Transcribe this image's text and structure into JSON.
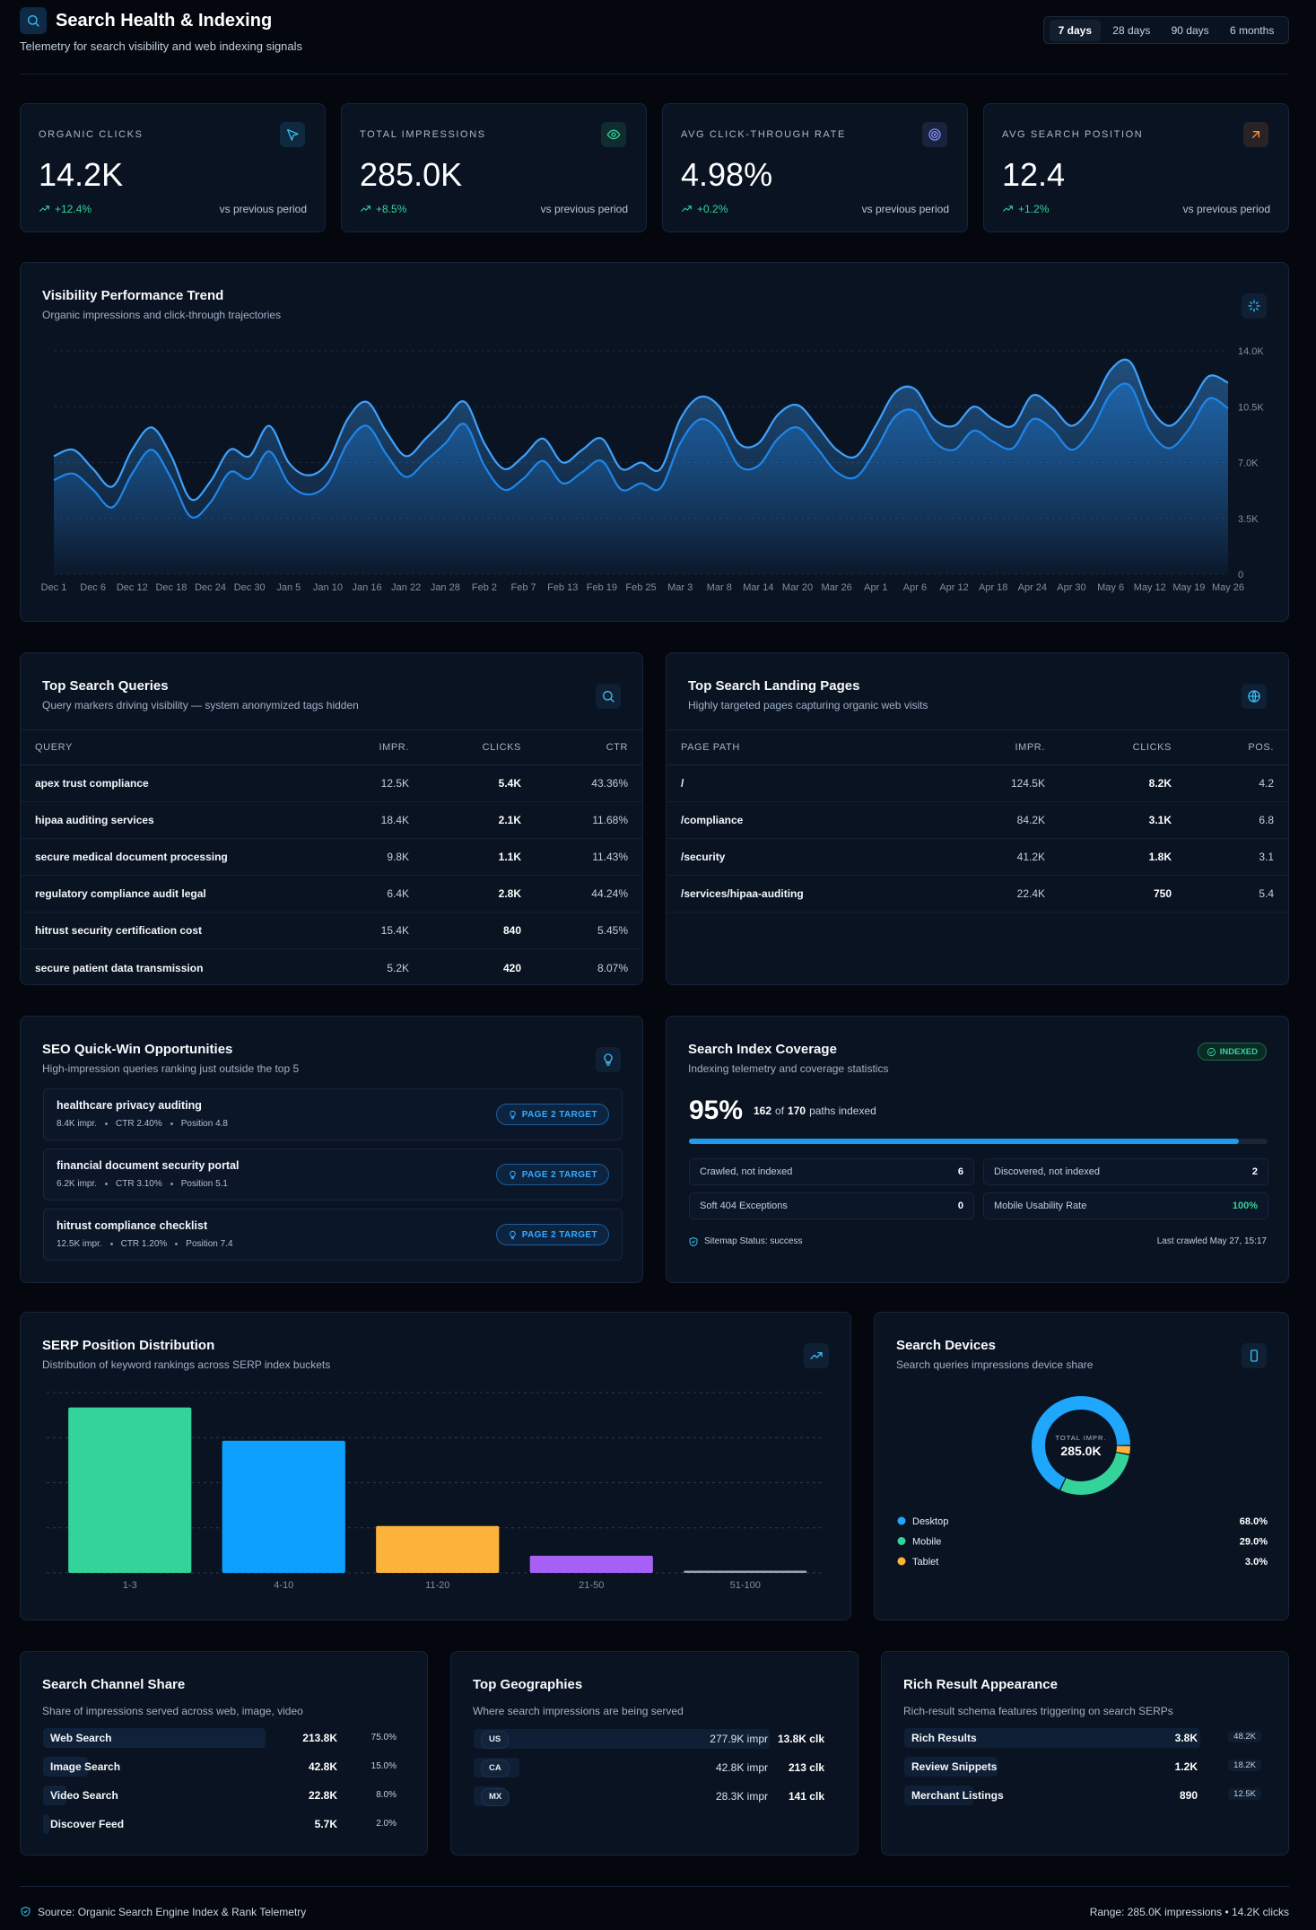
{
  "header": {
    "title": "Search Health & Indexing",
    "subtitle": "Telemetry for search visibility and web indexing signals",
    "ranges": [
      {
        "label": "7 days",
        "active": true
      },
      {
        "label": "28 days",
        "active": false
      },
      {
        "label": "90 days",
        "active": false
      },
      {
        "label": "6 months",
        "active": false
      }
    ]
  },
  "kpis": [
    {
      "label": "ORGANIC CLICKS",
      "value": "14.2K",
      "change": "+12.4%",
      "comparison": "vs previous period",
      "color": "#38bdf8"
    },
    {
      "label": "TOTAL IMPRESSIONS",
      "value": "285.0K",
      "change": "+8.5%",
      "comparison": "vs previous period",
      "color": "#34d399"
    },
    {
      "label": "AVG CLICK-THROUGH RATE",
      "value": "4.98%",
      "change": "+0.2%",
      "comparison": "vs previous period",
      "color": "#818cf8"
    },
    {
      "label": "AVG SEARCH POSITION",
      "value": "12.4",
      "change": "+1.2%",
      "comparison": "vs previous period",
      "color": "#fb923c"
    }
  ],
  "chart_data": [
    {
      "type": "area",
      "title": "Visibility Performance Trend",
      "subtitle": "Organic impressions and click-through trajectories",
      "categories": [
        "Dec 1",
        null,
        "Dec 6",
        null,
        "Dec 12",
        null,
        "Dec 18",
        null,
        "Dec 24",
        null,
        "Dec 30",
        null,
        "Jan 5",
        null,
        "Jan 10",
        null,
        "Jan 16",
        null,
        "Jan 22",
        null,
        "Jan 28",
        null,
        "Feb 2",
        null,
        "Feb 7",
        null,
        "Feb 13",
        null,
        "Feb 19",
        null,
        "Feb 25",
        null,
        "Mar 3",
        null,
        "Mar 8",
        null,
        "Mar 14",
        null,
        "Mar 20",
        null,
        "Mar 26",
        null,
        "Apr 1",
        null,
        "Apr 6",
        null,
        "Apr 12",
        null,
        "Apr 18",
        null,
        "Apr 24",
        null,
        "Apr 30",
        null,
        "May 6",
        null,
        "May 12",
        null,
        "May 19",
        null,
        "May 26"
      ],
      "series": [
        {
          "color": "#3da2ff",
          "values": [
            7400,
            7800,
            6600,
            5500,
            7800,
            9200,
            7400,
            4700,
            5800,
            7800,
            7400,
            9300,
            7000,
            6200,
            7000,
            9700,
            10800,
            8900,
            7400,
            8500,
            9700,
            10800,
            8200,
            6600,
            7400,
            8500,
            7000,
            7800,
            8500,
            6600,
            7000,
            6600,
            9700,
            11100,
            10500,
            8200,
            8200,
            10000,
            10600,
            9300,
            7800,
            7400,
            9300,
            11400,
            11600,
            9700,
            9300,
            10500,
            9700,
            9300,
            11200,
            10500,
            9300,
            10500,
            12800,
            13300,
            10500,
            9300,
            10500,
            12400,
            12000
          ]
        },
        {
          "color": "#1f86ea",
          "values": [
            5900,
            6300,
            5300,
            4200,
            6300,
            7800,
            6000,
            3600,
            4500,
            6400,
            6000,
            7700,
            5700,
            5000,
            5700,
            8200,
            9300,
            7500,
            6100,
            7100,
            8200,
            9400,
            6800,
            5300,
            6000,
            7100,
            5700,
            6400,
            7100,
            5300,
            5700,
            5400,
            8200,
            9700,
            9000,
            6800,
            6800,
            8500,
            9200,
            7900,
            6400,
            6100,
            7800,
            9900,
            10200,
            8300,
            7800,
            9000,
            8300,
            7900,
            9700,
            9100,
            7800,
            9000,
            11300,
            11800,
            9000,
            7900,
            9100,
            11000,
            10400
          ]
        }
      ],
      "ylim": [
        0,
        14000
      ],
      "yticks": [
        0,
        {
          "value": 3500,
          "label": "3.5K"
        },
        {
          "value": 7000,
          "label": "7.0K"
        },
        {
          "value": 10500,
          "label": "10.5K"
        },
        {
          "value": 14000,
          "label": "14.0K"
        }
      ],
      "grid": true
    },
    {
      "type": "bar",
      "title": "SERP Position Distribution",
      "subtitle": "Distribution of keyword rankings across SERP index buckets",
      "categories": [
        "1-3",
        "4-10",
        "11-20",
        "21-50",
        "51-100"
      ],
      "values": [
        36.7,
        29.3,
        10.4,
        3.8,
        0.5
      ],
      "colors": [
        "#34d399",
        "#0ea0ff",
        "#fbb33b",
        "#a760f5",
        "#9ca3af"
      ],
      "ylim": [
        0,
        40
      ],
      "yticks": [
        0,
        10,
        20,
        30,
        40
      ],
      "grid": true
    },
    {
      "type": "pie",
      "title": "Search Devices",
      "subtitle": "Search queries impressions device share",
      "center_label": "TOTAL IMPR.",
      "center_value": "285.0K",
      "categories": [
        "Desktop",
        "Mobile",
        "Tablet"
      ],
      "values": [
        68,
        29,
        3
      ],
      "value_labels": [
        "68.0%",
        "29.0%",
        "3.0%"
      ],
      "colors": [
        "#1ea7fd",
        "#34d399",
        "#fbb33b"
      ]
    }
  ],
  "queries": {
    "title": "Top Search Queries",
    "subtitle": "Query markers driving visibility — system anonymized tags hidden",
    "columns": [
      "QUERY",
      "IMPR.",
      "CLICKS",
      "CTR"
    ],
    "rows": [
      [
        "apex trust compliance",
        "12.5K",
        "5.4K",
        "43.36%"
      ],
      [
        "hipaa auditing services",
        "18.4K",
        "2.1K",
        "11.68%"
      ],
      [
        "secure medical document processing",
        "9.8K",
        "1.1K",
        "11.43%"
      ],
      [
        "regulatory compliance audit legal",
        "6.4K",
        "2.8K",
        "44.24%"
      ],
      [
        "hitrust security certification cost",
        "15.4K",
        "840",
        "5.45%"
      ],
      [
        "secure patient data transmission",
        "5.2K",
        "420",
        "8.07%"
      ]
    ]
  },
  "landing_pages": {
    "title": "Top Search Landing Pages",
    "subtitle": "Highly targeted pages capturing organic web visits",
    "columns": [
      "PAGE PATH",
      "IMPR.",
      "CLICKS",
      "POS."
    ],
    "rows": [
      [
        "/",
        "124.5K",
        "8.2K",
        "4.2"
      ],
      [
        "/compliance",
        "84.2K",
        "3.1K",
        "6.8"
      ],
      [
        "/security",
        "41.2K",
        "1.8K",
        "3.1"
      ],
      [
        "/services/hipaa-auditing",
        "22.4K",
        "750",
        "5.4"
      ]
    ]
  },
  "quick_wins": {
    "title": "SEO Quick-Win Opportunities",
    "subtitle": "High-impression queries ranking just outside the top 5",
    "items": [
      {
        "query": "healthcare privacy auditing",
        "impressions": "8.4K impr.",
        "ctr": "CTR 2.40%",
        "position": "Position 4.8",
        "badge": "PAGE 2 TARGET"
      },
      {
        "query": "financial document security portal",
        "impressions": "6.2K impr.",
        "ctr": "CTR 3.10%",
        "position": "Position 5.1",
        "badge": "PAGE 2 TARGET"
      },
      {
        "query": "hitrust compliance checklist",
        "impressions": "12.5K impr.",
        "ctr": "CTR 1.20%",
        "position": "Position 7.4",
        "badge": "PAGE 2 TARGET"
      }
    ]
  },
  "index_coverage": {
    "title": "Search Index Coverage",
    "subtitle": "Indexing telemetry and coverage statistics",
    "status": "INDEXED",
    "coverage": 95,
    "coverage_label": "95%",
    "indexed": "162",
    "of": "of",
    "total": "170",
    "indexed_suffix": "paths indexed",
    "stats": [
      {
        "label": "Crawled, not indexed",
        "value": "6"
      },
      {
        "label": "Discovered, not indexed",
        "value": "2"
      },
      {
        "label": "Soft 404 Exceptions",
        "value": "0"
      },
      {
        "label": "Mobile Usability Rate",
        "value": "100%",
        "highlight": true
      }
    ],
    "sitemap": "Sitemap Status: success",
    "last_crawled": "Last crawled May 27, 15:17"
  },
  "channel_share": {
    "title": "Search Channel Share",
    "subtitle": "Share of impressions served across web, image, video",
    "rows": [
      {
        "name": "Web Search",
        "impressions": "213.8K",
        "share": 75,
        "share_label": "75.0%"
      },
      {
        "name": "Image Search",
        "impressions": "42.8K",
        "share": 15,
        "share_label": "15.0%"
      },
      {
        "name": "Video Search",
        "impressions": "22.8K",
        "share": 8,
        "share_label": "8.0%"
      },
      {
        "name": "Discover Feed",
        "impressions": "5.7K",
        "share": 2,
        "share_label": "2.0%"
      }
    ]
  },
  "geographies": {
    "title": "Top Geographies",
    "subtitle": "Where search impressions are being served",
    "rows": [
      {
        "code": "US",
        "impressions": 277900,
        "impressions_label": "277.9K impr",
        "clicks": "13.8K clk"
      },
      {
        "code": "CA",
        "impressions": 42800,
        "impressions_label": "42.8K impr",
        "clicks": "213 clk"
      },
      {
        "code": "MX",
        "impressions": 28300,
        "impressions_label": "28.3K impr",
        "clicks": "141 clk"
      }
    ]
  },
  "rich_results": {
    "title": "Rich Result Appearance",
    "subtitle": "Rich-result schema features triggering on search SERPs",
    "rows": [
      {
        "name": "Rich Results",
        "count": 3800,
        "count_label": "3.8K",
        "impressions": "48.2K"
      },
      {
        "name": "Review Snippets",
        "count": 1200,
        "count_label": "1.2K",
        "impressions": "18.2K"
      },
      {
        "name": "Merchant Listings",
        "count": 890,
        "impressions": "12.5K"
      }
    ]
  },
  "footer": {
    "source": "Source: Organic Search Engine Index & Rank Telemetry",
    "range": "Range: 285.0K impressions • 14.2K clicks"
  }
}
